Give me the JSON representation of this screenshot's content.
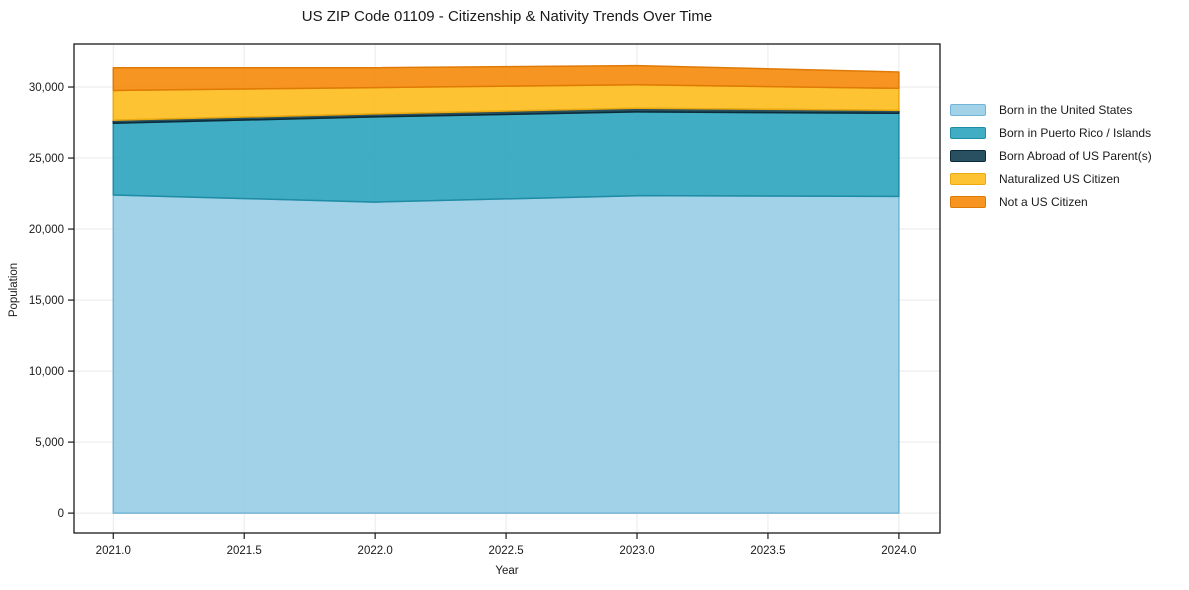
{
  "figure": {
    "background": "#ffffff"
  },
  "chart_data": {
    "type": "area",
    "stacked": true,
    "title": "US ZIP Code 01109 - Citizenship & Nativity Trends Over Time",
    "xlabel": "Year",
    "ylabel": "Population",
    "x": [
      2021,
      2022,
      2023,
      2024
    ],
    "series": [
      {
        "name": "Born in the United States",
        "color": "#97CDE6",
        "edge": "#74B4D6",
        "values": [
          22400,
          21900,
          22350,
          22300
        ]
      },
      {
        "name": "Born in Puerto Rico / Islands",
        "color": "#2BA4BE",
        "edge": "#1E8CA4",
        "values": [
          5050,
          6000,
          5900,
          5850
        ]
      },
      {
        "name": "Born Abroad of US Parent(s)",
        "color": "#123D4F",
        "edge": "#0C2B38",
        "values": [
          210,
          210,
          260,
          210
        ]
      },
      {
        "name": "Naturalized US Citizen",
        "color": "#FDBD1C",
        "edge": "#E9A90F",
        "values": [
          2100,
          1850,
          1650,
          1550
        ]
      },
      {
        "name": "Not a US Citizen",
        "color": "#F68A0B",
        "edge": "#DF7A06",
        "values": [
          1600,
          1400,
          1350,
          1150
        ]
      }
    ],
    "xlim": [
      2020.85,
      2024.157
    ],
    "ylim": [
      -1400,
      33030
    ],
    "xtick_values": [
      2021.0,
      2021.5,
      2022.0,
      2022.5,
      2023.0,
      2023.5,
      2024.0
    ],
    "xtick_labels": [
      "2021.0",
      "2021.5",
      "2022.0",
      "2022.5",
      "2023.0",
      "2023.5",
      "2024.0"
    ],
    "ytick_values": [
      0,
      5000,
      10000,
      15000,
      20000,
      25000,
      30000
    ],
    "ytick_labels": [
      "0",
      "5,000",
      "10,000",
      "15,000",
      "20,000",
      "25,000",
      "30,000"
    ],
    "grid": true,
    "legend_position": "right",
    "colors": {
      "grid": "#e9e9e9",
      "frame": "#1a1a1a",
      "text": "#1a1a1a"
    }
  }
}
